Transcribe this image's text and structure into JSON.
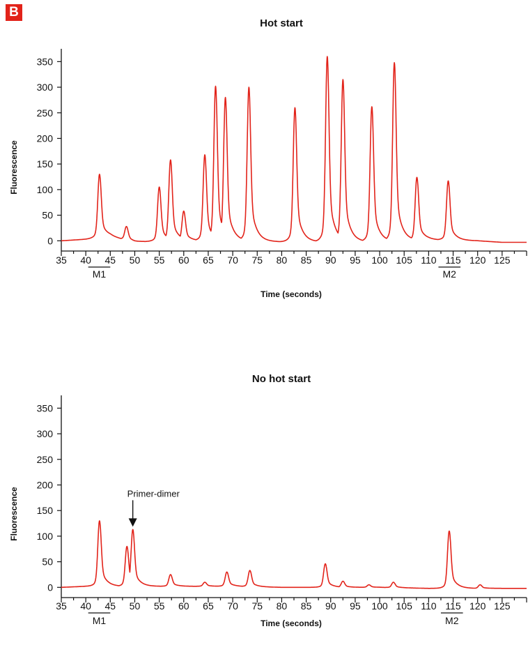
{
  "panel_label": "B",
  "colors": {
    "trace": "#e2231a",
    "badge": "#e2231a",
    "axis": "#111111"
  },
  "chart_data": [
    {
      "type": "line",
      "title": "Hot start",
      "xlabel": "Time (seconds)",
      "ylabel": "Fluorescence",
      "xlim": [
        35,
        130
      ],
      "ylim": [
        -20,
        375
      ],
      "xticks": [
        35,
        40,
        45,
        50,
        55,
        60,
        65,
        70,
        75,
        80,
        85,
        90,
        95,
        100,
        105,
        110,
        115,
        120,
        125
      ],
      "yticks": [
        0,
        50,
        100,
        150,
        200,
        250,
        300,
        350
      ],
      "grid": false,
      "markers": [
        {
          "label": "M1",
          "x_range": [
            40.5,
            45
          ]
        },
        {
          "label": "M2",
          "x_range": [
            112,
            116.5
          ]
        }
      ],
      "baseline": [
        [
          35,
          0
        ],
        [
          40,
          3
        ],
        [
          45,
          8
        ],
        [
          50,
          -2
        ],
        [
          60,
          0
        ],
        [
          70,
          0
        ],
        [
          80,
          -2
        ],
        [
          90,
          -2
        ],
        [
          100,
          -2
        ],
        [
          110,
          2
        ],
        [
          120,
          0
        ],
        [
          125,
          -3
        ],
        [
          130,
          -3
        ]
      ],
      "peaks": [
        {
          "x": 42.8,
          "y": 130
        },
        {
          "x": 48.3,
          "y": 28
        },
        {
          "x": 55.0,
          "y": 105
        },
        {
          "x": 57.3,
          "y": 158
        },
        {
          "x": 60.0,
          "y": 58
        },
        {
          "x": 64.3,
          "y": 168
        },
        {
          "x": 66.5,
          "y": 302
        },
        {
          "x": 68.5,
          "y": 280
        },
        {
          "x": 73.3,
          "y": 300
        },
        {
          "x": 82.7,
          "y": 260
        },
        {
          "x": 89.3,
          "y": 360
        },
        {
          "x": 92.5,
          "y": 315
        },
        {
          "x": 98.4,
          "y": 262
        },
        {
          "x": 103.0,
          "y": 348
        },
        {
          "x": 107.6,
          "y": 124
        },
        {
          "x": 114.0,
          "y": 117
        }
      ],
      "annotations": []
    },
    {
      "type": "line",
      "title": "No hot start",
      "xlabel": "Time (seconds)",
      "ylabel": "Fluorescence",
      "xlim": [
        35,
        130
      ],
      "ylim": [
        -20,
        375
      ],
      "xticks": [
        35,
        40,
        45,
        50,
        55,
        60,
        65,
        70,
        75,
        80,
        85,
        90,
        95,
        100,
        105,
        110,
        115,
        120,
        125
      ],
      "yticks": [
        0,
        50,
        100,
        150,
        200,
        250,
        300,
        350
      ],
      "grid": false,
      "markers": [
        {
          "label": "M1",
          "x_range": [
            40.5,
            45
          ]
        },
        {
          "label": "M2",
          "x_range": [
            112.5,
            117
          ]
        }
      ],
      "baseline": [
        [
          35,
          0
        ],
        [
          40,
          2
        ],
        [
          45,
          2
        ],
        [
          50,
          2
        ],
        [
          60,
          2
        ],
        [
          70,
          2
        ],
        [
          80,
          0
        ],
        [
          90,
          0
        ],
        [
          100,
          0
        ],
        [
          110,
          -2
        ],
        [
          120,
          -2
        ],
        [
          125,
          -2
        ],
        [
          130,
          -2
        ]
      ],
      "peaks": [
        {
          "x": 42.8,
          "y": 130
        },
        {
          "x": 48.4,
          "y": 80
        },
        {
          "x": 49.6,
          "y": 113
        },
        {
          "x": 57.3,
          "y": 25
        },
        {
          "x": 64.3,
          "y": 10
        },
        {
          "x": 68.8,
          "y": 30
        },
        {
          "x": 73.5,
          "y": 33
        },
        {
          "x": 88.9,
          "y": 46
        },
        {
          "x": 92.5,
          "y": 12
        },
        {
          "x": 97.8,
          "y": 5
        },
        {
          "x": 102.8,
          "y": 10
        },
        {
          "x": 114.2,
          "y": 110
        },
        {
          "x": 120.5,
          "y": 5
        }
      ],
      "annotations": [
        {
          "text": "Primer-dimer",
          "x": 49.6,
          "y": 113
        }
      ]
    }
  ]
}
